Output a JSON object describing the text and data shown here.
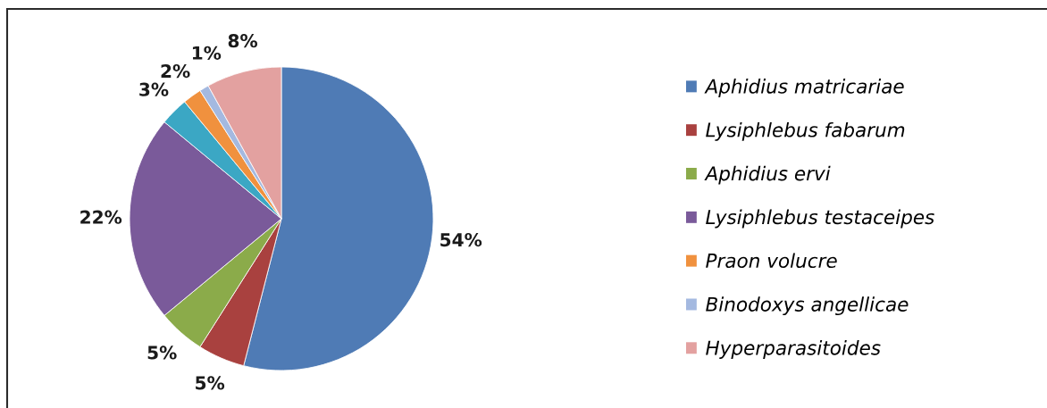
{
  "chart_data": {
    "type": "pie",
    "categories": [
      "Aphidius matricariae",
      "Lysiphlebus fabarum",
      "Aphidius ervi",
      "Lysiphlebus testaceipes",
      null,
      "Praon volucre",
      "Binodoxys angellicae",
      "Hyperparasitoides"
    ],
    "values": [
      54,
      5,
      5,
      22,
      3,
      2,
      1,
      8
    ],
    "colors": [
      "#4f7bb5",
      "#a9413f",
      "#8bab4a",
      "#7a5a9a",
      "#3ba7c4",
      "#f0913e",
      "#a4b9e0",
      "#e3a1a0"
    ],
    "value_labels": [
      "54%",
      "5%",
      "5%",
      "22%",
      "3%",
      "2%",
      "1%",
      "8%"
    ],
    "legend": "right"
  }
}
